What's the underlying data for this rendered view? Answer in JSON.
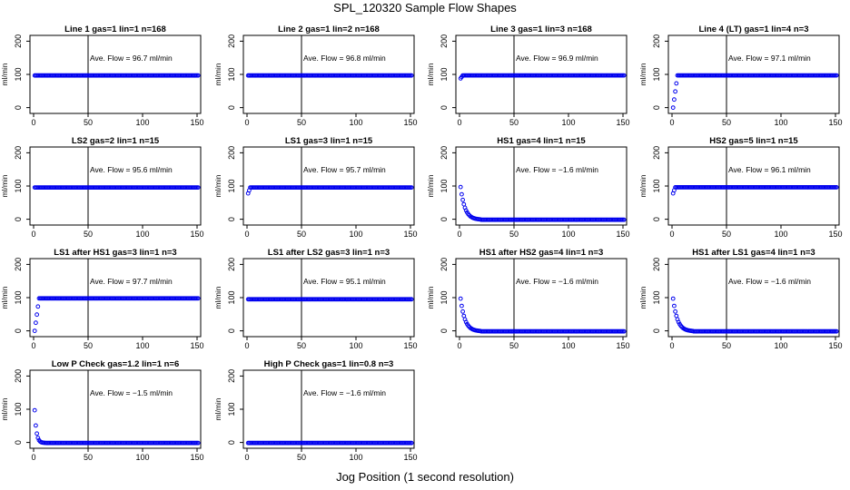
{
  "figure": {
    "title": "SPL_120320  Sample Flow Shapes",
    "xlabel": "Jog Position (1 second resolution)"
  },
  "chart_data": [
    {
      "type": "scatter",
      "title": "Line 1 gas=1 lin=1 n=168",
      "ylabel": "ml/min",
      "annotation": "Ave. Flow = 96.7  ml/min",
      "xlim": [
        0,
        150
      ],
      "ylim": [
        0,
        200
      ],
      "xticks": [
        0,
        50,
        100,
        150
      ],
      "yticks": [
        0,
        100,
        200
      ],
      "vline": 50,
      "shape": "flat",
      "plateau": 96.7,
      "start": 96.7
    },
    {
      "type": "scatter",
      "title": "Line 2 gas=1 lin=2 n=168",
      "ylabel": "ml/min",
      "annotation": "Ave. Flow = 96.8  ml/min",
      "xlim": [
        0,
        150
      ],
      "ylim": [
        0,
        200
      ],
      "xticks": [
        0,
        50,
        100,
        150
      ],
      "yticks": [
        0,
        100,
        200
      ],
      "vline": 50,
      "shape": "flat",
      "plateau": 96.8,
      "start": 96.8
    },
    {
      "type": "scatter",
      "title": "Line 3 gas=1 lin=3 n=168",
      "ylabel": "ml/min",
      "annotation": "Ave. Flow = 96.9  ml/min",
      "xlim": [
        0,
        150
      ],
      "ylim": [
        0,
        200
      ],
      "xticks": [
        0,
        50,
        100,
        150
      ],
      "yticks": [
        0,
        100,
        200
      ],
      "vline": 50,
      "shape": "rise",
      "plateau": 96.9,
      "start": 88
    },
    {
      "type": "scatter",
      "title": "Line 4 (LT) gas=1 lin=4 n=3",
      "ylabel": "ml/min",
      "annotation": "Ave. Flow = 97.1  ml/min",
      "xlim": [
        0,
        150
      ],
      "ylim": [
        0,
        200
      ],
      "xticks": [
        0,
        50,
        100,
        150
      ],
      "yticks": [
        0,
        100,
        200
      ],
      "vline": 50,
      "shape": "rise",
      "plateau": 97.1,
      "start": 0
    },
    {
      "type": "scatter",
      "title": "LS2 gas=2 lin=1 n=15",
      "ylabel": "ml/min",
      "annotation": "Ave. Flow = 95.6  ml/min",
      "xlim": [
        0,
        150
      ],
      "ylim": [
        0,
        200
      ],
      "xticks": [
        0,
        50,
        100,
        150
      ],
      "yticks": [
        0,
        100,
        200
      ],
      "vline": 50,
      "shape": "flat",
      "plateau": 95.6,
      "start": 95.6
    },
    {
      "type": "scatter",
      "title": "LS1 gas=3 lin=1 n=15",
      "ylabel": "ml/min",
      "annotation": "Ave. Flow = 95.7  ml/min",
      "xlim": [
        0,
        150
      ],
      "ylim": [
        0,
        200
      ],
      "xticks": [
        0,
        50,
        100,
        150
      ],
      "yticks": [
        0,
        100,
        200
      ],
      "vline": 50,
      "shape": "rise",
      "plateau": 95.7,
      "start": 78
    },
    {
      "type": "scatter",
      "title": "HS1 gas=4 lin=1 n=15",
      "ylabel": "ml/min",
      "annotation": "Ave. Flow = −1.6  ml/min",
      "xlim": [
        0,
        150
      ],
      "ylim": [
        0,
        200
      ],
      "xticks": [
        0,
        50,
        100,
        150
      ],
      "yticks": [
        0,
        100,
        200
      ],
      "vline": 50,
      "shape": "decay",
      "plateau": -1.6,
      "start": 97
    },
    {
      "type": "scatter",
      "title": "HS2 gas=5 lin=1 n=15",
      "ylabel": "ml/min",
      "annotation": "Ave. Flow = 96.1  ml/min",
      "xlim": [
        0,
        150
      ],
      "ylim": [
        0,
        200
      ],
      "xticks": [
        0,
        50,
        100,
        150
      ],
      "yticks": [
        0,
        100,
        200
      ],
      "vline": 50,
      "shape": "rise",
      "plateau": 96.1,
      "start": 78
    },
    {
      "type": "scatter",
      "title": "LS1 after HS1 gas=3 lin=1 n=3",
      "ylabel": "ml/min",
      "annotation": "Ave. Flow = 97.7  ml/min",
      "xlim": [
        0,
        150
      ],
      "ylim": [
        0,
        200
      ],
      "xticks": [
        0,
        50,
        100,
        150
      ],
      "yticks": [
        0,
        100,
        200
      ],
      "vline": 50,
      "shape": "rise",
      "plateau": 97.7,
      "start": 0
    },
    {
      "type": "scatter",
      "title": "LS1 after LS2 gas=3 lin=1 n=3",
      "ylabel": "ml/min",
      "annotation": "Ave. Flow = 95.1  ml/min",
      "xlim": [
        0,
        150
      ],
      "ylim": [
        0,
        200
      ],
      "xticks": [
        0,
        50,
        100,
        150
      ],
      "yticks": [
        0,
        100,
        200
      ],
      "vline": 50,
      "shape": "flat",
      "plateau": 95.1,
      "start": 95.1
    },
    {
      "type": "scatter",
      "title": "HS1 after HS2 gas=4 lin=1 n=3",
      "ylabel": "ml/min",
      "annotation": "Ave. Flow = −1.6  ml/min",
      "xlim": [
        0,
        150
      ],
      "ylim": [
        0,
        200
      ],
      "xticks": [
        0,
        50,
        100,
        150
      ],
      "yticks": [
        0,
        100,
        200
      ],
      "vline": 50,
      "shape": "decay",
      "plateau": -1.6,
      "start": 97
    },
    {
      "type": "scatter",
      "title": "HS1 after LS1 gas=4 lin=1 n=3",
      "ylabel": "ml/min",
      "annotation": "Ave. Flow = −1.6  ml/min",
      "xlim": [
        0,
        150
      ],
      "ylim": [
        0,
        200
      ],
      "xticks": [
        0,
        50,
        100,
        150
      ],
      "yticks": [
        0,
        100,
        200
      ],
      "vline": 50,
      "shape": "decay",
      "plateau": -1.6,
      "start": 97
    },
    {
      "type": "scatter",
      "title": "Low P Check gas=1.2 lin=1 n=6",
      "ylabel": "ml/min",
      "annotation": "Ave. Flow = −1.5  ml/min",
      "xlim": [
        0,
        150
      ],
      "ylim": [
        0,
        200
      ],
      "xticks": [
        0,
        50,
        100,
        150
      ],
      "yticks": [
        0,
        100,
        200
      ],
      "vline": 50,
      "shape": "fastdecay",
      "plateau": -1.5,
      "start": 97
    },
    {
      "type": "scatter",
      "title": "High P Check gas=1 lin=0.8 n=3",
      "ylabel": "ml/min",
      "annotation": "Ave. Flow = −1.6  ml/min",
      "xlim": [
        0,
        150
      ],
      "ylim": [
        0,
        200
      ],
      "xticks": [
        0,
        50,
        100,
        150
      ],
      "yticks": [
        0,
        100,
        200
      ],
      "vline": 50,
      "shape": "flat",
      "plateau": -1.6,
      "start": -1.6
    }
  ],
  "colors": {
    "points": "#0000ee",
    "axis": "#000000",
    "background": "#ffffff"
  }
}
